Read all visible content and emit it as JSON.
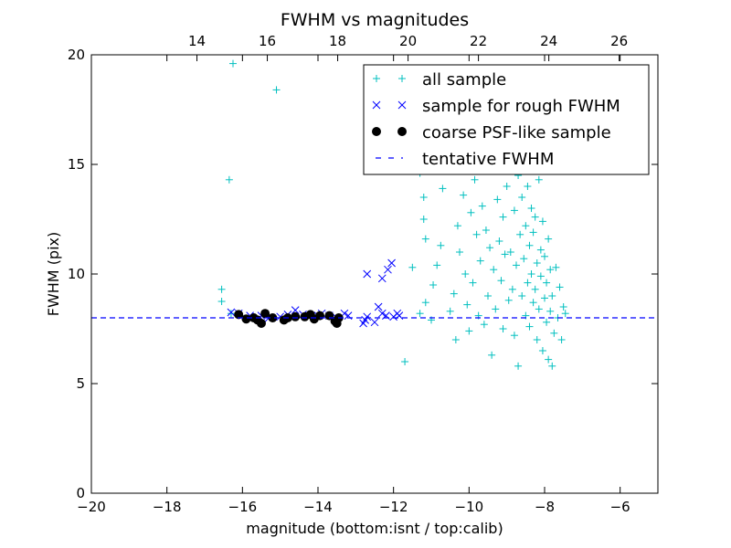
{
  "chart_data": {
    "type": "scatter",
    "title": "FWHM vs magnitudes",
    "xlabel": "magnitude (bottom:isnt / top:calib)",
    "ylabel": "FWHM (pix)",
    "xlim": [
      -20,
      -5
    ],
    "ylim": [
      0,
      20
    ],
    "xticks": [
      -20,
      -18,
      -16,
      -14,
      -12,
      -10,
      -8,
      -6
    ],
    "xtick_labels": [
      "−20",
      "−18",
      "−16",
      "−14",
      "−12",
      "−10",
      "−8",
      "−6"
    ],
    "yticks": [
      0,
      5,
      10,
      15,
      20
    ],
    "ytick_labels": [
      "0",
      "5",
      "10",
      "15",
      "20"
    ],
    "top_axis": {
      "label": "calib",
      "xlim": [
        11.0,
        27.1
      ],
      "ticks": [
        14,
        16,
        18,
        20,
        22,
        24,
        26
      ],
      "tick_labels": [
        "14",
        "16",
        "18",
        "20",
        "22",
        "24",
        "26"
      ]
    },
    "grid": false,
    "legend_placement": "top-right",
    "series": [
      {
        "name": "all sample",
        "marker": "+",
        "color": "#00bfbf",
        "points": [
          [
            -16.25,
            19.6
          ],
          [
            -15.1,
            18.4
          ],
          [
            -16.35,
            14.3
          ],
          [
            -16.55,
            9.3
          ],
          [
            -16.55,
            8.75
          ],
          [
            -16.3,
            8.2
          ],
          [
            -11.7,
            6.0
          ],
          [
            -11.4,
            15.0
          ],
          [
            -11.3,
            14.6
          ],
          [
            -11.2,
            13.5
          ],
          [
            -11.2,
            12.5
          ],
          [
            -11.15,
            11.6
          ],
          [
            -11.5,
            10.3
          ],
          [
            -11.15,
            8.7
          ],
          [
            -11.3,
            8.2
          ],
          [
            -11.0,
            7.9
          ],
          [
            -10.95,
            9.5
          ],
          [
            -10.85,
            10.4
          ],
          [
            -10.75,
            11.3
          ],
          [
            -10.7,
            13.9
          ],
          [
            -10.65,
            14.8
          ],
          [
            -10.5,
            8.3
          ],
          [
            -10.4,
            9.1
          ],
          [
            -10.35,
            7.0
          ],
          [
            -10.3,
            12.2
          ],
          [
            -10.25,
            11.0
          ],
          [
            -10.15,
            13.6
          ],
          [
            -10.1,
            10.0
          ],
          [
            -10.05,
            8.6
          ],
          [
            -10.0,
            7.4
          ],
          [
            -9.95,
            12.8
          ],
          [
            -9.9,
            9.6
          ],
          [
            -9.85,
            14.3
          ],
          [
            -9.8,
            11.8
          ],
          [
            -9.75,
            8.1
          ],
          [
            -9.7,
            10.6
          ],
          [
            -9.65,
            13.1
          ],
          [
            -9.6,
            7.7
          ],
          [
            -9.55,
            12.0
          ],
          [
            -9.5,
            9.0
          ],
          [
            -9.45,
            11.2
          ],
          [
            -9.4,
            14.8
          ],
          [
            -9.4,
            6.3
          ],
          [
            -9.35,
            10.2
          ],
          [
            -9.3,
            8.4
          ],
          [
            -9.25,
            13.4
          ],
          [
            -9.2,
            11.5
          ],
          [
            -9.15,
            9.7
          ],
          [
            -9.1,
            12.6
          ],
          [
            -9.1,
            7.5
          ],
          [
            -9.05,
            10.9
          ],
          [
            -9.0,
            14.0
          ],
          [
            -8.95,
            8.8
          ],
          [
            -8.95,
            15.4
          ],
          [
            -8.9,
            11.0
          ],
          [
            -8.85,
            9.3
          ],
          [
            -8.8,
            12.9
          ],
          [
            -8.8,
            7.2
          ],
          [
            -8.75,
            10.4
          ],
          [
            -8.7,
            14.5
          ],
          [
            -8.7,
            5.8
          ],
          [
            -8.65,
            11.8
          ],
          [
            -8.6,
            9.0
          ],
          [
            -8.6,
            13.5
          ],
          [
            -8.55,
            10.7
          ],
          [
            -8.5,
            8.1
          ],
          [
            -8.5,
            12.2
          ],
          [
            -8.45,
            14.0
          ],
          [
            -8.45,
            9.6
          ],
          [
            -8.4,
            11.3
          ],
          [
            -8.4,
            7.6
          ],
          [
            -8.35,
            10.0
          ],
          [
            -8.35,
            13.0
          ],
          [
            -8.3,
            8.7
          ],
          [
            -8.3,
            11.9
          ],
          [
            -8.25,
            9.3
          ],
          [
            -8.25,
            12.6
          ],
          [
            -8.2,
            10.5
          ],
          [
            -8.2,
            7.0
          ],
          [
            -8.15,
            14.3
          ],
          [
            -8.15,
            8.4
          ],
          [
            -8.1,
            11.1
          ],
          [
            -8.1,
            9.9
          ],
          [
            -8.05,
            6.5
          ],
          [
            -8.05,
            12.4
          ],
          [
            -8.0,
            8.9
          ],
          [
            -8.0,
            10.8
          ],
          [
            -7.95,
            7.8
          ],
          [
            -7.95,
            9.6
          ],
          [
            -7.9,
            11.6
          ],
          [
            -7.9,
            6.1
          ],
          [
            -7.85,
            8.3
          ],
          [
            -7.85,
            10.2
          ],
          [
            -7.8,
            5.8
          ],
          [
            -7.8,
            9.0
          ],
          [
            -7.75,
            7.3
          ],
          [
            -7.7,
            10.3
          ],
          [
            -7.65,
            8.0
          ],
          [
            -7.6,
            9.4
          ],
          [
            -7.55,
            7.0
          ],
          [
            -7.5,
            8.5
          ],
          [
            -7.45,
            8.2
          ]
        ]
      },
      {
        "name": "sample for rough FWHM",
        "marker": "x",
        "color": "#0000ff",
        "points": [
          [
            -16.3,
            8.25
          ],
          [
            -16.1,
            8.2
          ],
          [
            -15.8,
            8.1
          ],
          [
            -15.5,
            8.1
          ],
          [
            -15.3,
            8.0
          ],
          [
            -15.0,
            8.05
          ],
          [
            -14.8,
            8.15
          ],
          [
            -14.6,
            8.35
          ],
          [
            -14.4,
            8.15
          ],
          [
            -14.0,
            8.1
          ],
          [
            -13.9,
            8.2
          ],
          [
            -13.7,
            8.1
          ],
          [
            -13.5,
            8.0
          ],
          [
            -13.3,
            8.2
          ],
          [
            -13.2,
            8.1
          ],
          [
            -12.8,
            7.75
          ],
          [
            -12.75,
            7.9
          ],
          [
            -12.7,
            8.05
          ],
          [
            -12.7,
            10.0
          ],
          [
            -12.5,
            7.8
          ],
          [
            -12.4,
            8.5
          ],
          [
            -12.3,
            9.8
          ],
          [
            -12.3,
            8.2
          ],
          [
            -12.2,
            8.1
          ],
          [
            -12.15,
            10.2
          ],
          [
            -12.05,
            10.5
          ],
          [
            -12.0,
            8.05
          ],
          [
            -11.9,
            8.2
          ],
          [
            -11.85,
            8.1
          ]
        ]
      },
      {
        "name": "coarse PSF-like sample",
        "marker": "o",
        "color": "#000000",
        "points": [
          [
            -16.1,
            8.15
          ],
          [
            -15.9,
            7.95
          ],
          [
            -15.7,
            8.0
          ],
          [
            -15.6,
            7.9
          ],
          [
            -15.5,
            7.75
          ],
          [
            -15.4,
            8.2
          ],
          [
            -15.2,
            8.0
          ],
          [
            -14.9,
            7.9
          ],
          [
            -14.8,
            8.0
          ],
          [
            -14.6,
            8.05
          ],
          [
            -14.35,
            8.05
          ],
          [
            -14.2,
            8.15
          ],
          [
            -14.1,
            7.95
          ],
          [
            -13.95,
            8.1
          ],
          [
            -13.7,
            8.1
          ],
          [
            -13.55,
            7.85
          ],
          [
            -13.5,
            7.75
          ],
          [
            -13.45,
            8.0
          ]
        ]
      },
      {
        "name": "tentative FWHM",
        "marker": "dashed-line",
        "color": "#0000ff",
        "y": 8.0
      }
    ]
  }
}
